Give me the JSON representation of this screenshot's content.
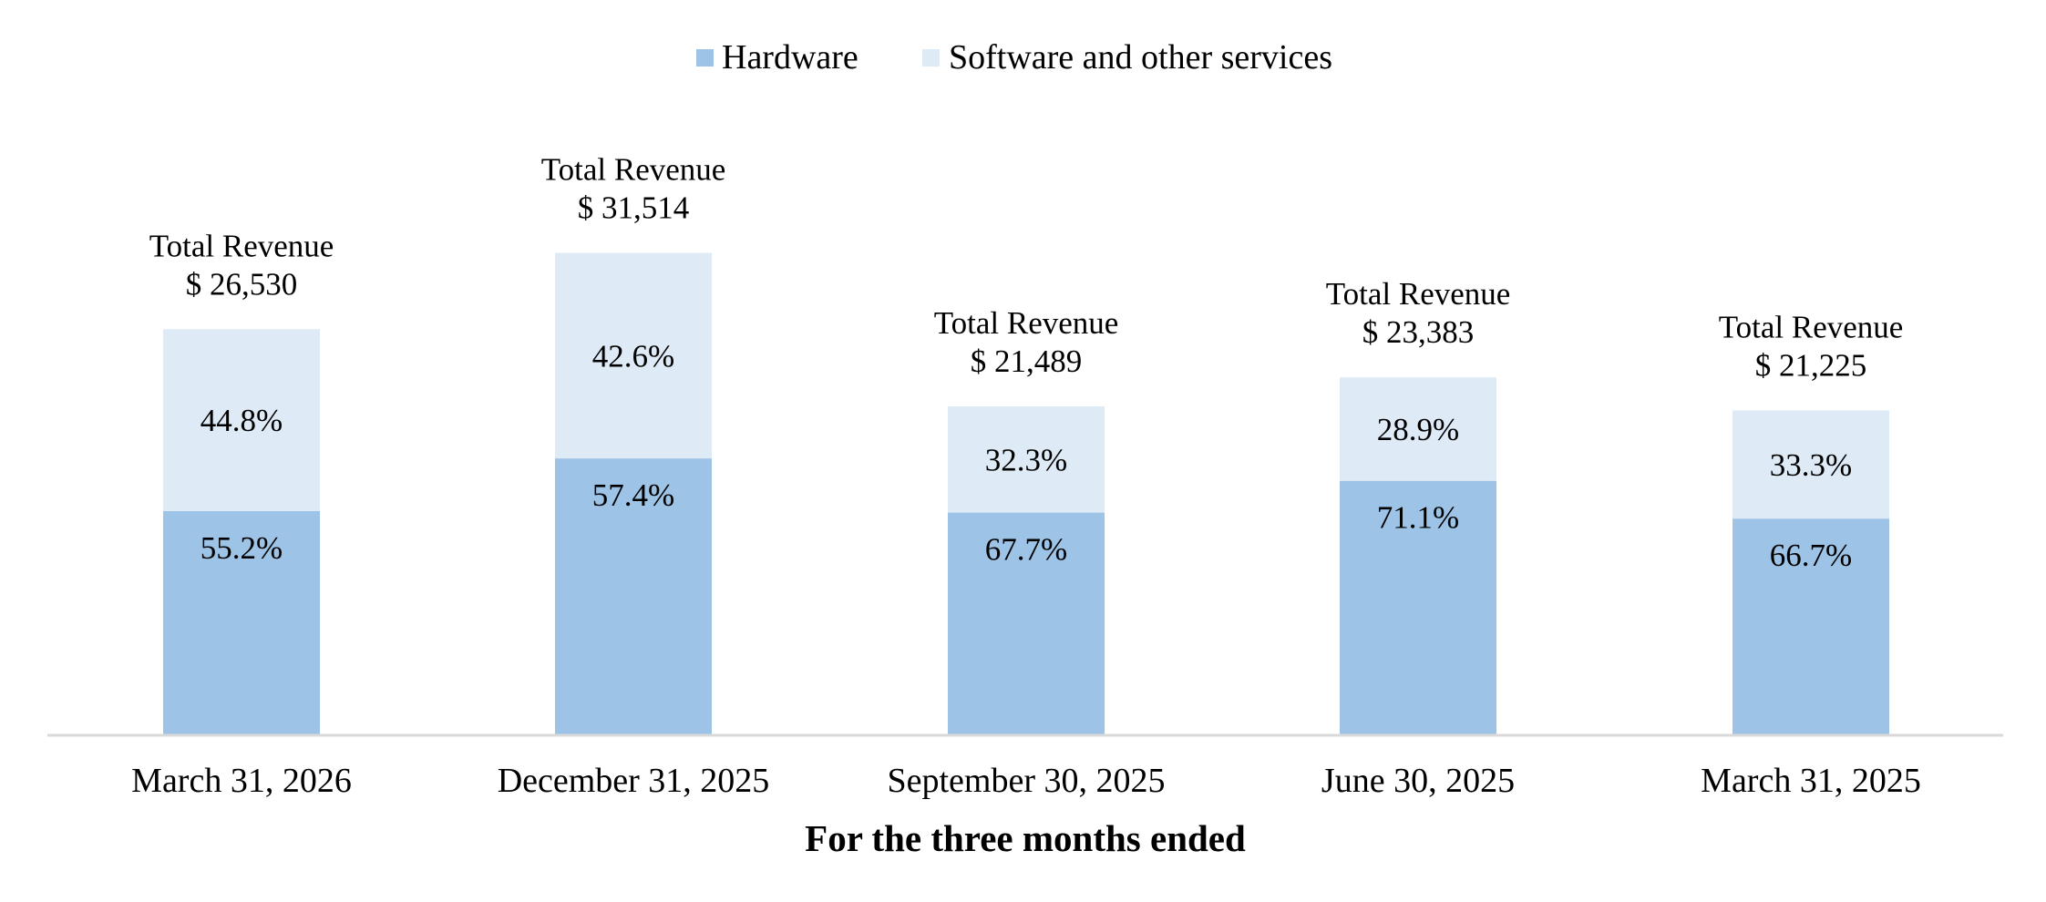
{
  "chart_data": {
    "type": "bar",
    "stacked": true,
    "categories": [
      "March 31, 2026",
      "December 31, 2025",
      "September 30, 2025",
      "June 30, 2025",
      "March 31, 2025"
    ],
    "series": [
      {
        "name": "Hardware",
        "values": [
          55.2,
          57.4,
          67.7,
          71.1,
          66.7
        ],
        "labels": [
          "55.2%",
          "57.4%",
          "67.7%",
          "71.1%",
          "66.7%"
        ],
        "color": "#9dc3e6"
      },
      {
        "name": "Software and other services",
        "values": [
          44.8,
          42.6,
          32.3,
          28.9,
          33.3
        ],
        "labels": [
          "44.8%",
          "42.6%",
          "32.3%",
          "28.9%",
          "33.3%"
        ],
        "color": "#deebf7"
      }
    ],
    "totals": {
      "caption": "Total Revenue",
      "values": [
        26530,
        31514,
        21489,
        23383,
        21225
      ],
      "labels": [
        "$ 26,530",
        "$ 31,514",
        "$ 21,489",
        "$ 23,383",
        "$ 21,225"
      ]
    },
    "xlabel": "For the three months ended",
    "ylabel": "",
    "legend_position": "top-center",
    "grid": false,
    "axis_color": "#d9d9d9"
  }
}
